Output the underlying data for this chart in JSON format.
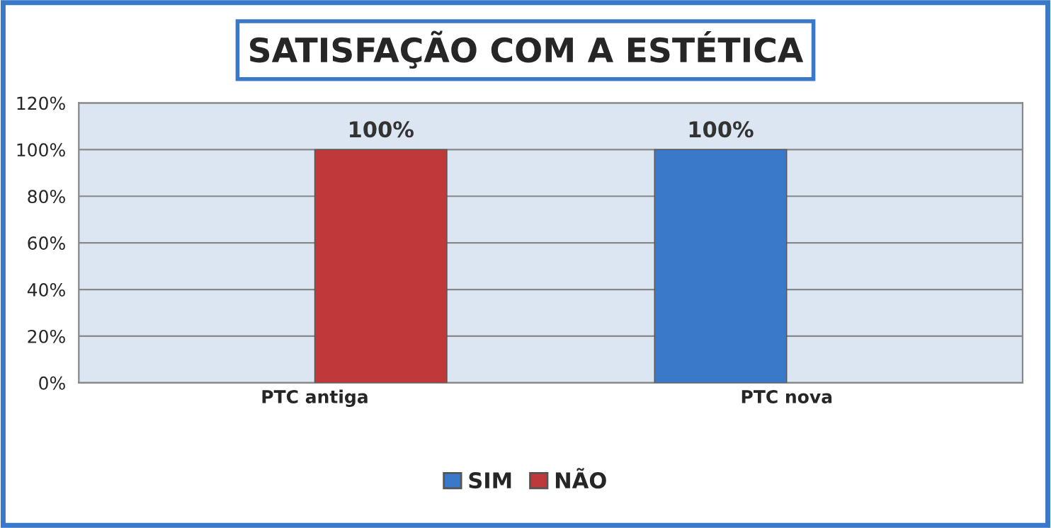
{
  "chart_data": {
    "type": "bar",
    "title": "SATISFAÇÃO COM A ESTÉTICA",
    "categories": [
      "PTC antiga",
      "PTC nova"
    ],
    "series": [
      {
        "name": "SIM",
        "color": "#3a78c9",
        "values": [
          null,
          100
        ],
        "value_labels": [
          null,
          "100%"
        ]
      },
      {
        "name": "NÃO",
        "color": "#c0393a",
        "values": [
          100,
          null
        ],
        "value_labels": [
          "100%",
          null
        ]
      }
    ],
    "ylim": [
      0,
      120
    ],
    "yticks": [
      {
        "value": 0,
        "label": "0%"
      },
      {
        "value": 20,
        "label": "20%"
      },
      {
        "value": 40,
        "label": "40%"
      },
      {
        "value": 60,
        "label": "60%"
      },
      {
        "value": 80,
        "label": "80%"
      },
      {
        "value": 100,
        "label": "100%"
      },
      {
        "value": 120,
        "label": "120%"
      }
    ],
    "grid": "y",
    "legend": "bottom"
  }
}
